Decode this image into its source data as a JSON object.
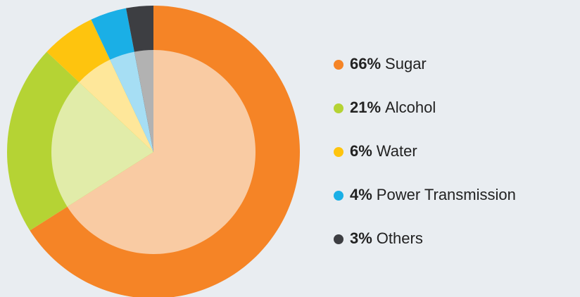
{
  "chart_data": {
    "type": "pie",
    "categories": [
      "Sugar",
      "Alcohol",
      "Water",
      "Power Transmission",
      "Others"
    ],
    "values": [
      66,
      21,
      6,
      4,
      3
    ],
    "value_labels": [
      "66%",
      "21%",
      "6%",
      "4%",
      "3%"
    ],
    "colors": [
      "#f58426",
      "#b5d334",
      "#fec40e",
      "#1aafe6",
      "#3d3e42"
    ],
    "inner_colors": [
      "#f9cba3",
      "#e1eca9",
      "#fee79a",
      "#a6def4",
      "#b2b2b2"
    ]
  }
}
